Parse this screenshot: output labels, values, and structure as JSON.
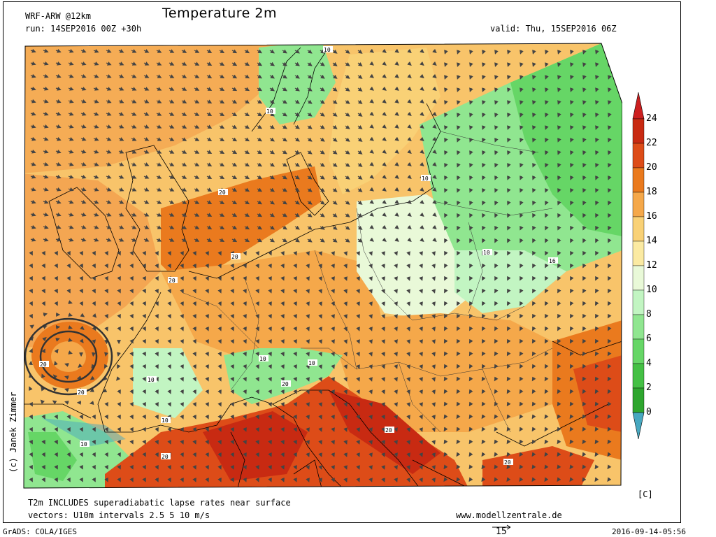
{
  "header": {
    "model": "WRF-ARW @12km",
    "title": "Temperature 2m",
    "run": "run: 14SEP2016 00Z +30h",
    "valid": "valid: Thu, 15SEP2016 06Z"
  },
  "footer": {
    "note1": "T2m INCLUDES superadiabatic lapse rates near surface",
    "note2": "vectors: U10m intervals 2.5 5 10 m/s",
    "website": "www.modellzentrale.de",
    "grads": "GrADS: COLA/IGES",
    "timestamp": "2016-09-14-05:56",
    "vector_ref": "15"
  },
  "credit": "(c) Janek Zimmer",
  "colorbar": {
    "unit": "[C]",
    "levels": [
      "0",
      "2",
      "4",
      "6",
      "8",
      "10",
      "12",
      "14",
      "16",
      "18",
      "20",
      "22",
      "24"
    ],
    "colors": [
      "#1a8a1a",
      "#2ea62e",
      "#44c044",
      "#66d666",
      "#90e690",
      "#c2f5c2",
      "#e9f9d8",
      "#fbeaa2",
      "#f9d176",
      "#f5a84a",
      "#ea7a1e",
      "#dd4c18",
      "#c82a12"
    ],
    "below_color": "#47a8c0",
    "above_color": "#cc1f1f"
  },
  "map_labels": [
    "10",
    "10",
    "10",
    "16",
    "20",
    "20",
    "20",
    "20",
    "20",
    "20",
    "20",
    "20",
    "20",
    "10",
    "10",
    "10",
    "10",
    "10",
    "10"
  ]
}
